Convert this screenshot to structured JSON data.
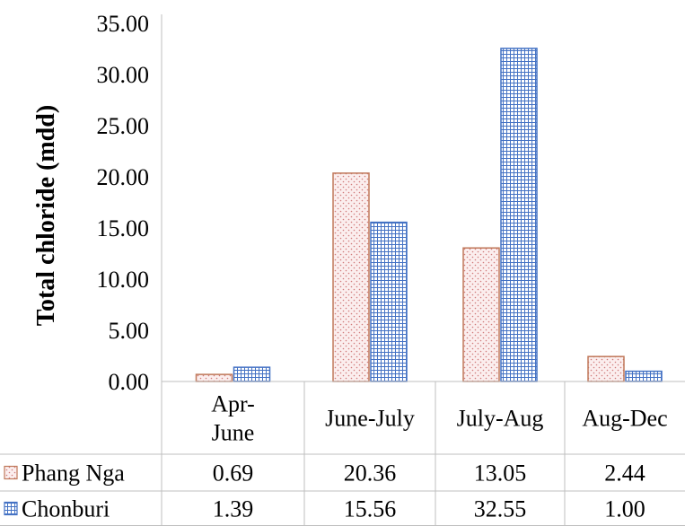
{
  "chart_data": {
    "type": "bar",
    "title": "",
    "xlabel": "",
    "ylabel": "Total chloride (mdd)",
    "ylim": [
      0,
      35
    ],
    "yticks": [
      "0.00",
      "5.00",
      "10.00",
      "15.00",
      "20.00",
      "25.00",
      "30.00",
      "35.00"
    ],
    "grid": false,
    "legend": "data-table",
    "categories": [
      "Apr-June",
      "June-July",
      "July-Aug",
      "Aug-Dec"
    ],
    "category_labels": [
      [
        "Apr-",
        "June"
      ],
      [
        "June-July"
      ],
      [
        "July-Aug"
      ],
      [
        "Aug-Dec"
      ]
    ],
    "series": [
      {
        "name": "Phang Nga",
        "values": [
          0.69,
          20.36,
          13.05,
          2.44
        ],
        "value_labels": [
          "0.69",
          "20.36",
          "13.05",
          "2.44"
        ],
        "pattern": "dots",
        "color": "#c0785a"
      },
      {
        "name": "Chonburi",
        "values": [
          1.39,
          15.56,
          32.55,
          1.0
        ],
        "value_labels": [
          "1.39",
          "15.56",
          "32.55",
          "1.00"
        ],
        "pattern": "grid",
        "color": "#4472c4"
      }
    ]
  }
}
